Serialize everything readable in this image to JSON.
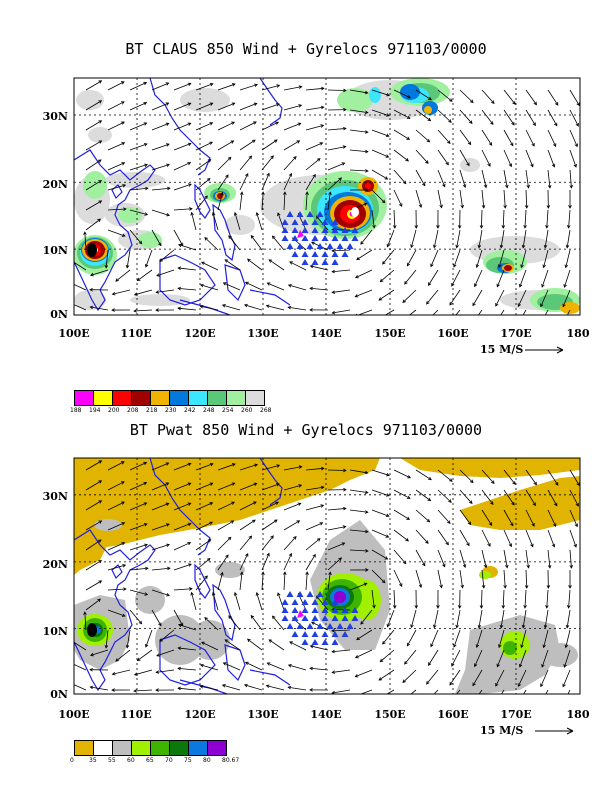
{
  "top_panel": {
    "title": "BT CLAUS 850 Wind + Gyrelocs 971103/0000",
    "scale_label": "15 M/S",
    "x_labels": [
      "100E",
      "110E",
      "120E",
      "130E",
      "140E",
      "150E",
      "160E",
      "170E",
      "180"
    ],
    "y_labels": [
      "30N",
      "20N",
      "10N",
      "0N"
    ],
    "colorbar": {
      "colors": [
        "#ff00ff",
        "#ffff00",
        "#ff0000",
        "#a00000",
        "#f0b400",
        "#0078dc",
        "#3ce6ff",
        "#5ac878",
        "#a0f0a0",
        "#dcdcdc"
      ],
      "labels": [
        "188",
        "194",
        "200",
        "208",
        "218",
        "230",
        "242",
        "248",
        "254",
        "260",
        "268"
      ]
    },
    "gyre_triangles_color": "#1f3fe0"
  },
  "bottom_panel": {
    "title": "BT Pwat 850 Wind + Gyrelocs 971103/0000",
    "scale_label": "15 M/S",
    "x_labels": [
      "100E",
      "110E",
      "120E",
      "130E",
      "140E",
      "150E",
      "160E",
      "170E",
      "180"
    ],
    "y_labels": [
      "30N",
      "20N",
      "10N",
      "0N"
    ],
    "colorbar": {
      "colors": [
        "#e0b400",
        "#ffffff",
        "#bebebe",
        "#a0f000",
        "#3cb400",
        "#0a780a",
        "#0a78dc",
        "#8c00d2"
      ],
      "labels": [
        "0",
        "35",
        "55",
        "60",
        "65",
        "70",
        "75",
        "80",
        "80.67"
      ]
    },
    "gyre_triangles_color": "#1f3fe0"
  },
  "colors": {
    "coastline": "#2020e0",
    "grid": "#000000",
    "arrows": "#000000"
  }
}
